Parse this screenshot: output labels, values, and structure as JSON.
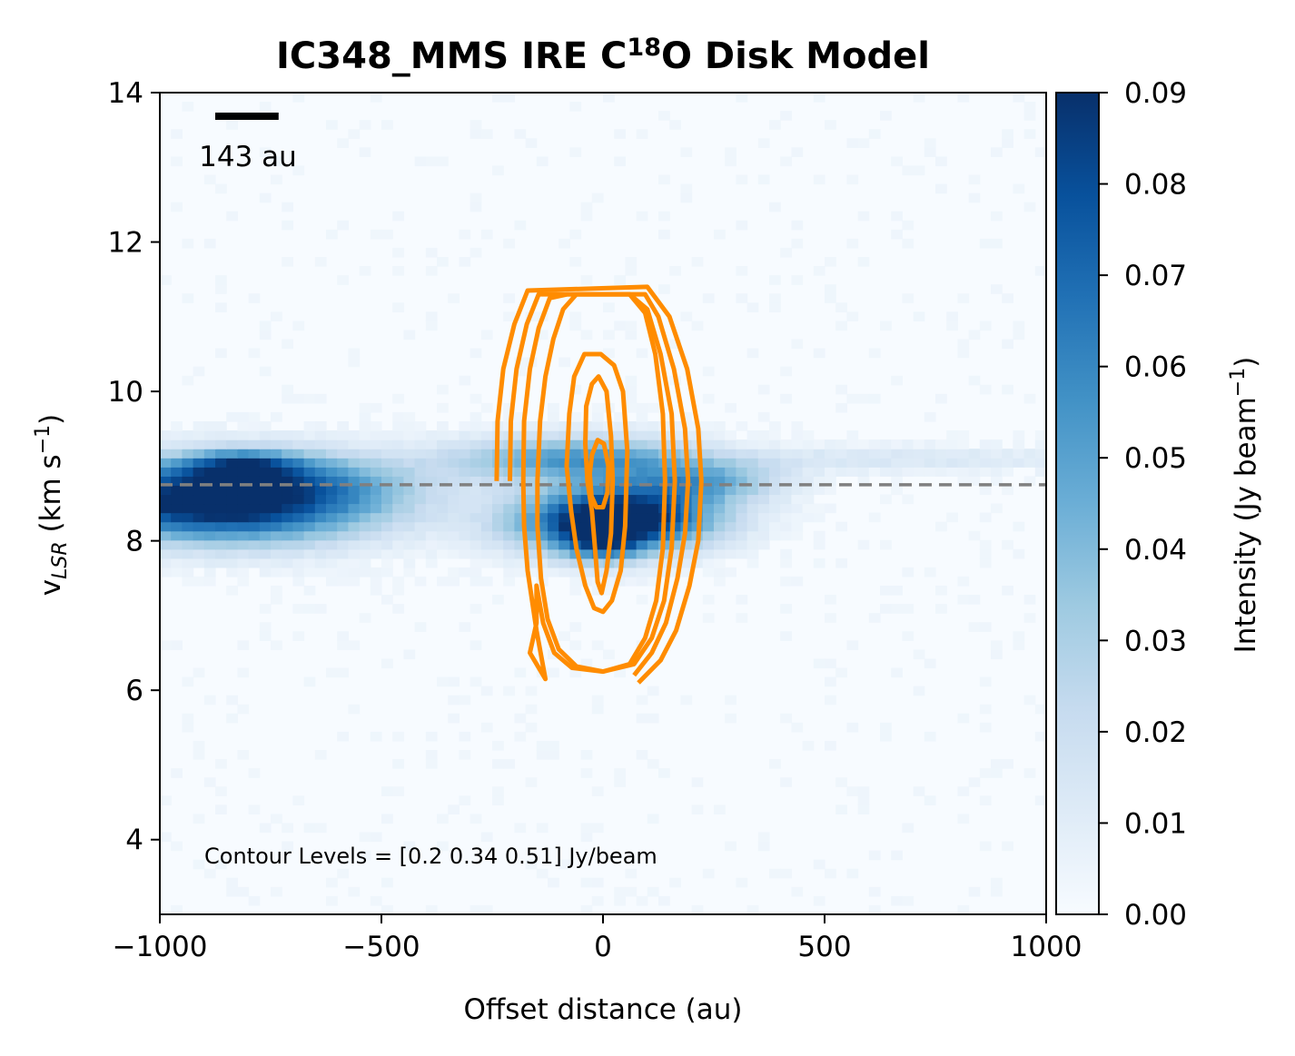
{
  "chart_data": {
    "type": "heatmap",
    "title": {
      "prefix": "IC348_MMS IRE C",
      "superscript": "18",
      "suffix": "O Disk Model"
    },
    "xlabel": "Offset distance (au)",
    "ylabel": {
      "base": "v",
      "subscript": "LSR",
      "unit_open": " (km s",
      "unit_exp": "−1",
      "unit_close": ")"
    },
    "xlim": [
      -1000,
      1000
    ],
    "ylim": [
      3,
      14
    ],
    "x_ticks": [
      -1000,
      -500,
      0,
      500,
      1000
    ],
    "x_tick_labels": [
      "−1000",
      "−500",
      "0",
      "500",
      "1000"
    ],
    "y_ticks": [
      4,
      6,
      8,
      10,
      12,
      14
    ],
    "y_tick_labels": [
      "4",
      "6",
      "8",
      "10",
      "12",
      "14"
    ],
    "colorbar": {
      "label_prefix": "Intensity (Jy beam",
      "label_exp": "−1",
      "label_suffix": ")",
      "range": [
        0.0,
        0.09
      ],
      "ticks": [
        0.0,
        0.01,
        0.02,
        0.03,
        0.04,
        0.05,
        0.06,
        0.07,
        0.08,
        0.09
      ],
      "tick_labels": [
        "0.00",
        "0.01",
        "0.02",
        "0.03",
        "0.04",
        "0.05",
        "0.06",
        "0.07",
        "0.08",
        "0.09"
      ],
      "colormap": "Blues"
    },
    "systemic_velocity": 8.75,
    "scale_bar": {
      "length_au": 143,
      "label": "143 au"
    },
    "contour_label": "Contour Levels = [0.2  0.34 0.51] Jy/beam",
    "contour_color": "#ff8c00",
    "dashed_line_color": "#808080",
    "emission_features": [
      {
        "x": -900,
        "v": 8.5,
        "sx": 230,
        "sv": 0.35,
        "amp": 0.095,
        "rot": -0.25
      },
      {
        "x": -650,
        "v": 8.8,
        "sx": 180,
        "sv": 0.3,
        "amp": 0.04,
        "rot": -0.25
      },
      {
        "x": -820,
        "v": 9.0,
        "sx": 90,
        "sv": 0.15,
        "amp": 0.05,
        "rot": 0
      },
      {
        "x": 30,
        "v": 8.3,
        "sx": 150,
        "sv": 0.3,
        "amp": 0.11,
        "rot": 0.2
      },
      {
        "x": -60,
        "v": 9.1,
        "sx": 190,
        "sv": 0.22,
        "amp": 0.05,
        "rot": 0
      },
      {
        "x": 230,
        "v": 8.8,
        "sx": 120,
        "sv": 0.18,
        "amp": 0.035,
        "rot": 0
      },
      {
        "x": 650,
        "v": 9.1,
        "sx": 380,
        "sv": 0.12,
        "amp": 0.012,
        "rot": 0
      },
      {
        "x": 0,
        "v": 8.0,
        "sx": 60,
        "sv": 0.2,
        "amp": 0.04,
        "rot": 0
      }
    ],
    "contours": [
      {
        "level": 0.2,
        "points": [
          [
            -240,
            8.8
          ],
          [
            -238,
            9.6
          ],
          [
            -225,
            10.3
          ],
          [
            -200,
            10.9
          ],
          [
            -170,
            11.35
          ],
          [
            100,
            11.4
          ],
          [
            150,
            11.0
          ],
          [
            190,
            10.3
          ],
          [
            215,
            9.5
          ],
          [
            222,
            8.8
          ],
          [
            215,
            8.0
          ],
          [
            195,
            7.4
          ],
          [
            165,
            6.8
          ],
          [
            130,
            6.4
          ],
          [
            80,
            6.1
          ]
        ]
      },
      {
        "level": 0.2,
        "points": [
          [
            -210,
            8.8
          ],
          [
            -208,
            9.6
          ],
          [
            -195,
            10.3
          ],
          [
            -172,
            10.9
          ],
          [
            -145,
            11.3
          ],
          [
            95,
            11.3
          ],
          [
            125,
            11.0
          ],
          [
            160,
            10.3
          ],
          [
            185,
            9.5
          ],
          [
            192,
            8.8
          ],
          [
            185,
            8.1
          ],
          [
            168,
            7.5
          ],
          [
            142,
            6.9
          ],
          [
            110,
            6.5
          ],
          [
            70,
            6.2
          ]
        ]
      },
      {
        "level": 0.34,
        "points": [
          [
            -180,
            8.8
          ],
          [
            -178,
            9.6
          ],
          [
            -165,
            10.3
          ],
          [
            -145,
            10.85
          ],
          [
            -120,
            11.25
          ],
          [
            -80,
            11.3
          ],
          [
            60,
            11.3
          ],
          [
            100,
            11.1
          ],
          [
            130,
            10.5
          ],
          [
            155,
            9.7
          ],
          [
            162,
            8.8
          ],
          [
            155,
            7.9
          ],
          [
            138,
            7.2
          ],
          [
            110,
            6.7
          ],
          [
            70,
            6.35
          ],
          [
            0,
            6.25
          ],
          [
            -70,
            6.3
          ],
          [
            -110,
            6.5
          ],
          [
            -135,
            6.9
          ],
          [
            -150,
            7.4
          ],
          [
            -150,
            6.9
          ],
          [
            -165,
            6.5
          ],
          [
            -130,
            6.15
          ],
          [
            -150,
            6.8
          ],
          [
            -170,
            7.6
          ],
          [
            -178,
            8.2
          ],
          [
            -180,
            8.8
          ]
        ],
        "closed": false
      },
      {
        "level": 0.34,
        "points": [
          [
            -148,
            8.8
          ],
          [
            -142,
            9.6
          ],
          [
            -130,
            10.2
          ],
          [
            -112,
            10.7
          ],
          [
            -90,
            11.1
          ],
          [
            -60,
            11.3
          ],
          [
            60,
            11.3
          ],
          [
            95,
            11.05
          ],
          [
            118,
            10.5
          ],
          [
            135,
            9.7
          ],
          [
            140,
            8.8
          ],
          [
            135,
            7.9
          ],
          [
            120,
            7.2
          ],
          [
            95,
            6.7
          ],
          [
            60,
            6.35
          ],
          [
            0,
            6.25
          ],
          [
            -60,
            6.32
          ],
          [
            -100,
            6.55
          ],
          [
            -125,
            6.95
          ],
          [
            -140,
            7.5
          ],
          [
            -148,
            8.2
          ],
          [
            -148,
            8.8
          ]
        ],
        "closed": true
      },
      {
        "level": 0.51,
        "points": [
          [
            -82,
            9.0
          ],
          [
            -76,
            9.7
          ],
          [
            -65,
            10.2
          ],
          [
            -42,
            10.5
          ],
          [
            -5,
            10.5
          ],
          [
            25,
            10.35
          ],
          [
            45,
            10.0
          ],
          [
            55,
            9.2
          ],
          [
            50,
            8.2
          ],
          [
            40,
            7.6
          ],
          [
            20,
            7.2
          ],
          [
            0,
            7.05
          ],
          [
            -20,
            7.1
          ],
          [
            -40,
            7.4
          ],
          [
            -60,
            7.9
          ],
          [
            -72,
            8.4
          ],
          [
            -82,
            9.0
          ]
        ],
        "closed": true
      },
      {
        "level": 0.51,
        "points": [
          [
            -40,
            9.3
          ],
          [
            -38,
            9.8
          ],
          [
            -25,
            10.1
          ],
          [
            -10,
            10.2
          ],
          [
            8,
            10.0
          ],
          [
            18,
            9.4
          ],
          [
            22,
            8.8
          ],
          [
            18,
            8.1
          ],
          [
            8,
            7.6
          ],
          [
            -3,
            7.3
          ],
          [
            -12,
            7.45
          ],
          [
            -18,
            7.9
          ],
          [
            -25,
            8.4
          ],
          [
            -35,
            8.8
          ],
          [
            -40,
            9.3
          ]
        ],
        "closed": true
      },
      {
        "level": 0.51,
        "points": [
          [
            -30,
            8.9
          ],
          [
            -25,
            9.15
          ],
          [
            -12,
            9.35
          ],
          [
            2,
            9.3
          ],
          [
            12,
            9.0
          ],
          [
            10,
            8.65
          ],
          [
            0,
            8.45
          ],
          [
            -15,
            8.45
          ],
          [
            -26,
            8.6
          ],
          [
            -30,
            8.9
          ]
        ],
        "closed": true
      }
    ]
  }
}
